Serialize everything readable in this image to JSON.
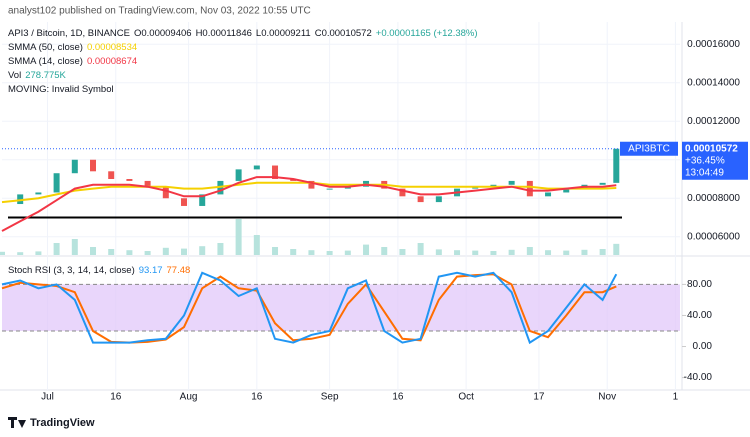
{
  "header": "analyst102 published on TradingView.com, Nov 03, 2022 10:55 UTC",
  "footer": "TradingView",
  "chart_data": [
    {
      "type": "candle-line",
      "title": "API3 / Bitcoin, 1D, BINANCE",
      "ohlc_text": [
        "O0.00009406",
        "H0.00011846",
        "L0.00009211",
        "C0.00010572",
        "+0.00001165 (+12.38%)"
      ],
      "indicator_labels": [
        {
          "name": "SMMA (50, close)",
          "value": "0.00008534",
          "color": "#f5d000"
        },
        {
          "name": "SMMA (14, close)",
          "value": "0.00008674",
          "color": "#f23645"
        },
        {
          "name": "Vol",
          "value": "278.775K",
          "color": "#26a69a"
        },
        {
          "name": "MOVING: Invalid Symbol",
          "value": null,
          "color": null
        }
      ],
      "symbol_tag": "API3BTC",
      "price_tag": [
        "0.00010572",
        "+36.45%",
        "13:04:49"
      ],
      "support_level": 7e-05,
      "xlim": [
        "2022-06-21",
        "2022-11-17"
      ],
      "xticks": [
        {
          "value": "2022-07-01",
          "label": "Jul"
        },
        {
          "value": "2022-07-16",
          "label": "16"
        },
        {
          "value": "2022-08-01",
          "label": "Aug"
        },
        {
          "value": "2022-08-16",
          "label": "16"
        },
        {
          "value": "2022-09-01",
          "label": "Sep"
        },
        {
          "value": "2022-09-16",
          "label": "16"
        },
        {
          "value": "2022-10-01",
          "label": "Oct"
        },
        {
          "value": "2022-10-17",
          "label": "17"
        },
        {
          "value": "2022-11-01",
          "label": "Nov"
        },
        {
          "value": "2022-11-16",
          "label": "1"
        }
      ],
      "ylim": [
        5e-05,
        0.00017
      ],
      "yticks": [
        {
          "value": 6e-05,
          "label": "0.00006000"
        },
        {
          "value": 8e-05,
          "label": "0.00008000"
        },
        {
          "value": 0.0001,
          "label": "0.00010000"
        },
        {
          "value": 0.00012,
          "label": "0.00012000"
        },
        {
          "value": 0.00014,
          "label": "0.00014000"
        },
        {
          "value": 0.00016,
          "label": "0.00016000"
        }
      ],
      "x": [
        "2022-06-21",
        "2022-06-25",
        "2022-06-29",
        "2022-07-03",
        "2022-07-07",
        "2022-07-11",
        "2022-07-15",
        "2022-07-19",
        "2022-07-23",
        "2022-07-27",
        "2022-07-31",
        "2022-08-04",
        "2022-08-08",
        "2022-08-12",
        "2022-08-16",
        "2022-08-20",
        "2022-08-24",
        "2022-08-28",
        "2022-09-01",
        "2022-09-05",
        "2022-09-09",
        "2022-09-13",
        "2022-09-17",
        "2022-09-21",
        "2022-09-25",
        "2022-09-29",
        "2022-10-03",
        "2022-10-07",
        "2022-10-11",
        "2022-10-15",
        "2022-10-19",
        "2022-10-23",
        "2022-10-27",
        "2022-10-31",
        "2022-11-03"
      ],
      "series": [
        {
          "name": "Close",
          "color": "#26a69a",
          "values": [
            7.7e-05,
            8.2e-05,
            8.3e-05,
            9.3e-05,
            0.0001,
            9.4e-05,
            9e-05,
            8.9e-05,
            8.6e-05,
            8e-05,
            7.6e-05,
            8.2e-05,
            8.9e-05,
            9.5e-05,
            9.7e-05,
            9e-05,
            8.9e-05,
            8.5e-05,
            8.5e-05,
            8.6e-05,
            8.9e-05,
            8.5e-05,
            8.1e-05,
            7.8e-05,
            8.1e-05,
            8.5e-05,
            8.6e-05,
            8.7e-05,
            8.9e-05,
            8.1e-05,
            8.3e-05,
            8.5e-05,
            8.7e-05,
            8.8e-05,
            0.00010572
          ]
        },
        {
          "name": "SMMA (50, close)",
          "color": "#f5d000",
          "values": [
            7.8e-05,
            7.9e-05,
            8e-05,
            8.2e-05,
            8.4e-05,
            8.5e-05,
            8.6e-05,
            8.6e-05,
            8.6e-05,
            8.6e-05,
            8.5e-05,
            8.5e-05,
            8.6e-05,
            8.7e-05,
            8.8e-05,
            8.8e-05,
            8.8e-05,
            8.8e-05,
            8.7e-05,
            8.7e-05,
            8.7e-05,
            8.7e-05,
            8.6e-05,
            8.6e-05,
            8.6e-05,
            8.6e-05,
            8.6e-05,
            8.6e-05,
            8.6e-05,
            8.6e-05,
            8.5e-05,
            8.5e-05,
            8.5e-05,
            8.5e-05,
            8.534e-05
          ]
        },
        {
          "name": "SMMA (14, close)",
          "color": "#f23645",
          "values": [
            6.3e-05,
            6.8e-05,
            7.3e-05,
            7.9e-05,
            8.5e-05,
            8.7e-05,
            8.7e-05,
            8.7e-05,
            8.6e-05,
            8.4e-05,
            8.1e-05,
            8.1e-05,
            8.4e-05,
            8.8e-05,
            9.1e-05,
            9.1e-05,
            9e-05,
            8.8e-05,
            8.6e-05,
            8.6e-05,
            8.7e-05,
            8.6e-05,
            8.4e-05,
            8.2e-05,
            8.2e-05,
            8.3e-05,
            8.4e-05,
            8.5e-05,
            8.6e-05,
            8.4e-05,
            8.4e-05,
            8.5e-05,
            8.6e-05,
            8.6e-05,
            8.674e-05
          ]
        }
      ],
      "volume": {
        "color": "#b7e3dd",
        "max": 1000,
        "values": [
          80,
          70,
          90,
          300,
          400,
          200,
          150,
          120,
          100,
          180,
          160,
          220,
          300,
          900,
          500,
          200,
          150,
          120,
          100,
          110,
          260,
          200,
          150,
          300,
          140,
          120,
          110,
          100,
          130,
          200,
          120,
          110,
          130,
          150,
          278.775
        ]
      }
    },
    {
      "type": "line",
      "title": "Stoch RSI (3, 3, 14, 14, close)",
      "legend_values": [
        "93.17",
        "77.48"
      ],
      "band": [
        20,
        80
      ],
      "ylim": [
        -56,
        114
      ],
      "yticks": [
        {
          "value": -40,
          "label": "-40.00"
        },
        {
          "value": 0,
          "label": "0.00"
        },
        {
          "value": 40,
          "label": "40.00"
        },
        {
          "value": 80,
          "label": "80.00"
        }
      ],
      "series": [
        {
          "name": "K",
          "color": "#2196f3",
          "values": [
            80,
            85,
            75,
            80,
            60,
            5,
            5,
            5,
            8,
            10,
            40,
            95,
            85,
            65,
            75,
            10,
            5,
            15,
            20,
            75,
            85,
            20,
            5,
            10,
            90,
            95,
            90,
            95,
            70,
            5,
            20,
            50,
            80,
            60,
            93.17
          ]
        },
        {
          "name": "D",
          "color": "#ff6d00",
          "values": [
            75,
            82,
            80,
            78,
            70,
            20,
            6,
            5,
            6,
            9,
            25,
            75,
            90,
            75,
            72,
            30,
            8,
            10,
            15,
            55,
            80,
            45,
            10,
            8,
            60,
            90,
            92,
            93,
            80,
            20,
            12,
            40,
            70,
            70,
            77.48
          ]
        }
      ]
    }
  ]
}
